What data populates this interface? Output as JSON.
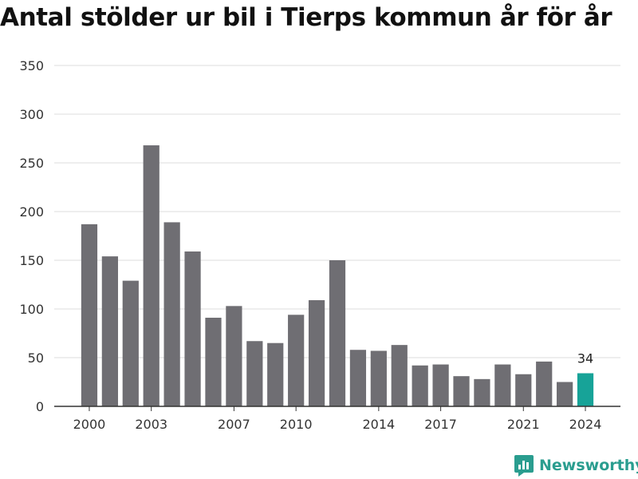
{
  "title": "Antal stölder ur bil i Tierps kommun år för år",
  "brand": {
    "name": "Newsworthy",
    "icon": "newsworthy-logo-icon"
  },
  "colors": {
    "bar": "#6f6e73",
    "highlight": "#17a398",
    "grid": "#dddddd",
    "brand": "#2a9d8f"
  },
  "chart_data": {
    "type": "bar",
    "title": "Antal stölder ur bil i Tierps kommun år för år",
    "xlabel": "",
    "ylabel": "",
    "categories": [
      2000,
      2001,
      2002,
      2003,
      2004,
      2005,
      2006,
      2007,
      2008,
      2009,
      2010,
      2011,
      2012,
      2013,
      2014,
      2015,
      2016,
      2017,
      2018,
      2019,
      2020,
      2021,
      2022,
      2023,
      2024
    ],
    "values": [
      187,
      154,
      129,
      268,
      189,
      159,
      91,
      103,
      67,
      65,
      94,
      109,
      150,
      58,
      57,
      63,
      42,
      43,
      31,
      28,
      43,
      33,
      46,
      25,
      34
    ],
    "x_tick_labels": [
      "2000",
      "2003",
      "2007",
      "2010",
      "2014",
      "2017",
      "2021",
      "2024"
    ],
    "y_ticks": [
      0,
      50,
      100,
      150,
      200,
      250,
      300,
      350
    ],
    "ylim": [
      0,
      350
    ],
    "grid": true,
    "highlight_last": true,
    "data_labels": [
      {
        "category": 2024,
        "text": "34"
      }
    ]
  }
}
